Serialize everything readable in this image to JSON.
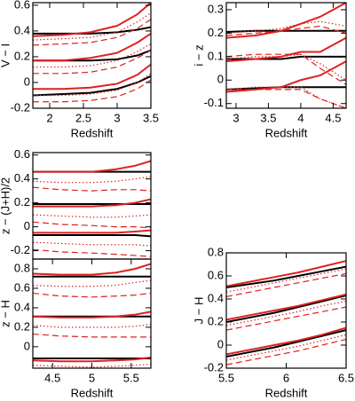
{
  "chart_data": [
    {
      "type": "line",
      "xlabel": "Redshift",
      "ylabel": "V − I",
      "x": [
        1.75,
        2.2,
        2.6,
        3.0,
        3.3,
        3.5
      ],
      "xlim": [
        1.75,
        3.5
      ],
      "xticks": [
        2,
        2.5,
        3,
        3.5
      ],
      "ylim": [
        -0.2,
        0.62
      ],
      "yticks": [
        -0.2,
        0,
        0.2,
        0.4,
        0.6
      ],
      "series": [
        {
          "color": "#000000",
          "dash": "solid",
          "values": [
            0.38,
            0.38,
            0.38,
            0.39,
            0.41,
            0.43
          ]
        },
        {
          "color": "#e02020",
          "dash": "solid",
          "values": [
            0.36,
            0.37,
            0.39,
            0.44,
            0.53,
            0.62
          ]
        },
        {
          "color": "#e02020",
          "dash": "dotted",
          "values": [
            0.33,
            0.34,
            0.35,
            0.39,
            0.47,
            0.54
          ]
        },
        {
          "color": "#e02020",
          "dash": "dashed",
          "values": [
            0.29,
            0.3,
            0.31,
            0.35,
            0.42,
            0.49
          ]
        },
        {
          "color": "#000000",
          "dash": "solid",
          "values": [
            0.17,
            0.17,
            0.17,
            0.18,
            0.21,
            0.25
          ]
        },
        {
          "color": "#e02020",
          "dash": "solid",
          "values": [
            0.17,
            0.17,
            0.19,
            0.23,
            0.31,
            0.38
          ]
        },
        {
          "color": "#e02020",
          "dash": "dotted",
          "values": [
            0.12,
            0.12,
            0.13,
            0.17,
            0.24,
            0.3
          ]
        },
        {
          "color": "#e02020",
          "dash": "dashed",
          "values": [
            0.07,
            0.07,
            0.08,
            0.12,
            0.19,
            0.25
          ]
        },
        {
          "color": "#000000",
          "dash": "solid",
          "values": [
            -0.1,
            -0.09,
            -0.08,
            -0.05,
            0.0,
            0.05
          ]
        },
        {
          "color": "#e02020",
          "dash": "solid",
          "values": [
            -0.05,
            -0.05,
            -0.04,
            -0.01,
            0.06,
            0.14
          ]
        },
        {
          "color": "#e02020",
          "dash": "dotted",
          "values": [
            -0.1,
            -0.1,
            -0.09,
            -0.06,
            0.0,
            0.07
          ]
        },
        {
          "color": "#e02020",
          "dash": "dashed",
          "values": [
            -0.15,
            -0.15,
            -0.14,
            -0.11,
            -0.05,
            0.02
          ]
        }
      ]
    },
    {
      "type": "line",
      "xlabel": "Redshift",
      "ylabel": "i − z",
      "x": [
        2.85,
        3.3,
        3.7,
        4.0,
        4.3,
        4.7
      ],
      "xlim": [
        2.85,
        4.7
      ],
      "xticks": [
        3,
        3.5,
        4,
        4.5
      ],
      "ylim": [
        -0.12,
        0.33
      ],
      "yticks": [
        -0.1,
        0,
        0.1,
        0.2,
        0.3
      ],
      "series": [
        {
          "color": "#000000",
          "dash": "solid",
          "values": [
            0.205,
            0.21,
            0.21,
            0.21,
            0.21,
            0.21
          ]
        },
        {
          "color": "#e02020",
          "dash": "solid",
          "values": [
            0.18,
            0.19,
            0.21,
            0.24,
            0.27,
            0.33
          ]
        },
        {
          "color": "#e02020",
          "dash": "dotted",
          "values": [
            0.2,
            0.21,
            0.22,
            0.24,
            0.25,
            0.23
          ]
        },
        {
          "color": "#e02020",
          "dash": "dashed",
          "values": [
            0.19,
            0.2,
            0.21,
            0.22,
            0.23,
            0.2
          ]
        },
        {
          "color": "#000000",
          "dash": "solid",
          "values": [
            0.09,
            0.09,
            0.09,
            0.1,
            0.1,
            0.1
          ]
        },
        {
          "color": "#e02020",
          "dash": "solid",
          "values": [
            0.08,
            0.09,
            0.1,
            0.12,
            0.12,
            0.18
          ]
        },
        {
          "color": "#e02020",
          "dash": "dotted",
          "values": [
            0.09,
            0.1,
            0.1,
            0.11,
            0.07,
            0.0
          ]
        },
        {
          "color": "#e02020",
          "dash": "dashed",
          "values": [
            0.1,
            0.11,
            0.11,
            0.11,
            0.05,
            -0.02
          ]
        },
        {
          "color": "#000000",
          "dash": "solid",
          "values": [
            -0.04,
            -0.035,
            -0.03,
            -0.03,
            -0.03,
            -0.03
          ]
        },
        {
          "color": "#e02020",
          "dash": "solid",
          "values": [
            -0.05,
            -0.04,
            -0.03,
            0.0,
            0.02,
            0.08
          ]
        },
        {
          "color": "#e02020",
          "dash": "dotted",
          "values": [
            -0.04,
            -0.03,
            -0.03,
            -0.03,
            -0.08,
            -0.12
          ]
        },
        {
          "color": "#e02020",
          "dash": "dashed",
          "values": [
            -0.04,
            -0.04,
            -0.04,
            -0.04,
            -0.08,
            -0.12
          ]
        }
      ]
    },
    {
      "type": "line",
      "ylabel": "z − (J+H)/2",
      "x": [
        4.25,
        4.6,
        5.0,
        5.3,
        5.55,
        5.75
      ],
      "xlim": [
        4.25,
        5.75
      ],
      "ylim": [
        -0.27,
        0.62
      ],
      "yticks": [
        -0.2,
        0,
        0.2,
        0.4,
        0.6
      ],
      "series": [
        {
          "color": "#000000",
          "dash": "solid",
          "values": [
            0.46,
            0.46,
            0.46,
            0.46,
            0.46,
            0.46
          ]
        },
        {
          "color": "#e02020",
          "dash": "solid",
          "values": [
            0.46,
            0.46,
            0.46,
            0.48,
            0.51,
            0.55
          ]
        },
        {
          "color": "#e02020",
          "dash": "dotted",
          "values": [
            0.38,
            0.37,
            0.37,
            0.38,
            0.4,
            0.42
          ]
        },
        {
          "color": "#e02020",
          "dash": "dashed",
          "values": [
            0.33,
            0.31,
            0.3,
            0.31,
            0.31,
            0.3
          ]
        },
        {
          "color": "#000000",
          "dash": "solid",
          "values": [
            0.19,
            0.19,
            0.19,
            0.19,
            0.19,
            0.19
          ]
        },
        {
          "color": "#e02020",
          "dash": "solid",
          "values": [
            0.17,
            0.17,
            0.17,
            0.18,
            0.2,
            0.23
          ]
        },
        {
          "color": "#e02020",
          "dash": "dotted",
          "values": [
            0.1,
            0.09,
            0.08,
            0.08,
            0.09,
            0.1
          ]
        },
        {
          "color": "#e02020",
          "dash": "dashed",
          "values": [
            0.04,
            0.02,
            0.01,
            0.0,
            0.0,
            -0.01
          ]
        },
        {
          "color": "#000000",
          "dash": "solid",
          "values": [
            -0.07,
            -0.07,
            -0.07,
            -0.07,
            -0.07,
            -0.08
          ]
        },
        {
          "color": "#e02020",
          "dash": "solid",
          "values": [
            -0.05,
            -0.05,
            -0.05,
            -0.05,
            -0.04,
            -0.03
          ]
        },
        {
          "color": "#e02020",
          "dash": "dotted",
          "values": [
            -0.13,
            -0.14,
            -0.15,
            -0.15,
            -0.15,
            -0.16
          ]
        },
        {
          "color": "#e02020",
          "dash": "dashed",
          "values": [
            -0.19,
            -0.21,
            -0.22,
            -0.23,
            -0.24,
            -0.25
          ]
        }
      ]
    },
    {
      "type": "line",
      "xlabel": "Redshift",
      "ylabel": "z − H",
      "x": [
        4.25,
        4.6,
        5.0,
        5.3,
        5.55,
        5.75
      ],
      "xlim": [
        4.25,
        5.75
      ],
      "xticks": [
        4.5,
        5,
        5.5
      ],
      "ylim": [
        -0.22,
        0.9
      ],
      "yticks": [
        0,
        0.2,
        0.4,
        0.6,
        0.8
      ],
      "series": [
        {
          "color": "#000000",
          "dash": "solid",
          "values": [
            0.72,
            0.72,
            0.72,
            0.72,
            0.72,
            0.72
          ]
        },
        {
          "color": "#e02020",
          "dash": "solid",
          "values": [
            0.75,
            0.74,
            0.74,
            0.76,
            0.8,
            0.85
          ]
        },
        {
          "color": "#e02020",
          "dash": "dotted",
          "values": [
            0.63,
            0.62,
            0.62,
            0.63,
            0.66,
            0.68
          ]
        },
        {
          "color": "#e02020",
          "dash": "dashed",
          "values": [
            0.55,
            0.52,
            0.51,
            0.52,
            0.53,
            0.55
          ]
        },
        {
          "color": "#000000",
          "dash": "solid",
          "values": [
            0.31,
            0.31,
            0.31,
            0.31,
            0.31,
            0.31
          ]
        },
        {
          "color": "#e02020",
          "dash": "solid",
          "values": [
            0.31,
            0.3,
            0.3,
            0.31,
            0.33,
            0.36
          ]
        },
        {
          "color": "#e02020",
          "dash": "dotted",
          "values": [
            0.22,
            0.2,
            0.2,
            0.2,
            0.21,
            0.23
          ]
        },
        {
          "color": "#e02020",
          "dash": "dashed",
          "values": [
            0.13,
            0.11,
            0.1,
            0.1,
            0.1,
            0.1
          ]
        },
        {
          "color": "#000000",
          "dash": "solid",
          "values": [
            -0.12,
            -0.12,
            -0.12,
            -0.12,
            -0.12,
            -0.12
          ]
        },
        {
          "color": "#e02020",
          "dash": "solid",
          "values": [
            -0.14,
            -0.15,
            -0.15,
            -0.14,
            -0.13,
            -0.11
          ]
        },
        {
          "color": "#e02020",
          "dash": "dotted",
          "values": [
            -0.19,
            -0.2,
            -0.21,
            -0.2,
            -0.19,
            -0.18
          ]
        }
      ]
    },
    {
      "type": "line",
      "xlabel": "Redshift",
      "ylabel": "J − H",
      "x": [
        5.5,
        5.7,
        5.9,
        6.1,
        6.3,
        6.5
      ],
      "xlim": [
        5.5,
        6.5
      ],
      "xticks": [
        5.5,
        6,
        6.5
      ],
      "ylim": [
        -0.2,
        0.8
      ],
      "yticks": [
        -0.2,
        0,
        0.2,
        0.4,
        0.6,
        0.8
      ],
      "series": [
        {
          "color": "#000000",
          "dash": "solid",
          "values": [
            0.5,
            0.53,
            0.56,
            0.6,
            0.64,
            0.68
          ]
        },
        {
          "color": "#e02020",
          "dash": "solid",
          "values": [
            0.51,
            0.55,
            0.59,
            0.63,
            0.68,
            0.73
          ]
        },
        {
          "color": "#e02020",
          "dash": "dotted",
          "values": [
            0.46,
            0.5,
            0.54,
            0.58,
            0.62,
            0.66
          ]
        },
        {
          "color": "#e02020",
          "dash": "dashed",
          "values": [
            0.42,
            0.46,
            0.5,
            0.54,
            0.58,
            0.62
          ]
        },
        {
          "color": "#000000",
          "dash": "solid",
          "values": [
            0.2,
            0.24,
            0.28,
            0.33,
            0.38,
            0.43
          ]
        },
        {
          "color": "#e02020",
          "dash": "solid",
          "values": [
            0.22,
            0.26,
            0.3,
            0.34,
            0.39,
            0.44
          ]
        },
        {
          "color": "#e02020",
          "dash": "dotted",
          "values": [
            0.17,
            0.21,
            0.25,
            0.29,
            0.34,
            0.38
          ]
        },
        {
          "color": "#e02020",
          "dash": "dashed",
          "values": [
            0.13,
            0.17,
            0.21,
            0.25,
            0.29,
            0.33
          ]
        },
        {
          "color": "#000000",
          "dash": "solid",
          "values": [
            -0.1,
            -0.06,
            -0.02,
            0.03,
            0.08,
            0.13
          ]
        },
        {
          "color": "#e02020",
          "dash": "solid",
          "values": [
            -0.08,
            -0.04,
            0.0,
            0.04,
            0.09,
            0.15
          ]
        },
        {
          "color": "#e02020",
          "dash": "dotted",
          "values": [
            -0.13,
            -0.09,
            -0.05,
            -0.01,
            0.04,
            0.09
          ]
        },
        {
          "color": "#e02020",
          "dash": "dashed",
          "values": [
            -0.17,
            -0.13,
            -0.09,
            -0.05,
            0.0,
            0.05
          ]
        }
      ]
    }
  ]
}
